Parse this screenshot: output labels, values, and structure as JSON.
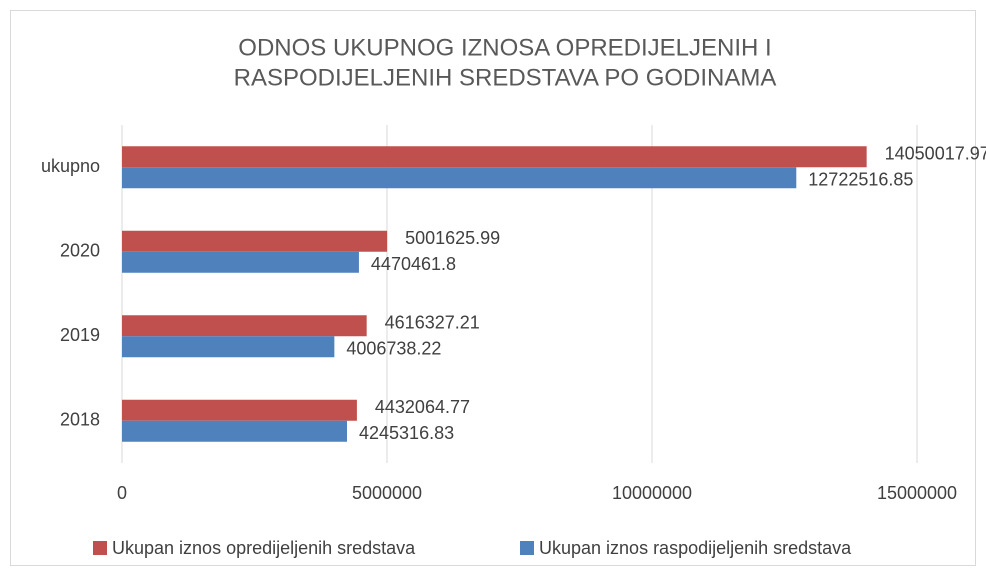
{
  "chart_data": {
    "type": "hbar",
    "title": [
      "ODNOS UKUPNOG IZNOSA OPREDIJELJENIH I",
      "RASPODIJELJENIH SREDSTAVA PO GODINAMA"
    ],
    "categories": [
      "ukupno",
      "2020",
      "2019",
      "2018"
    ],
    "series": [
      {
        "name": "Ukupan iznos opredijeljenih sredstava",
        "color": "#c0504d",
        "values": [
          14050017.97,
          5001625.99,
          4616327.21,
          4432064.77
        ]
      },
      {
        "name": "Ukupan iznos raspodijeljenih sredstava",
        "color": "#4f81bd",
        "values": [
          12722516.85,
          4470461.8,
          4006738.22,
          4245316.83
        ]
      }
    ],
    "xlim": [
      0,
      15000000
    ],
    "xticks": [
      0,
      5000000,
      10000000,
      15000000
    ],
    "grid": true,
    "legend": "bottom"
  }
}
